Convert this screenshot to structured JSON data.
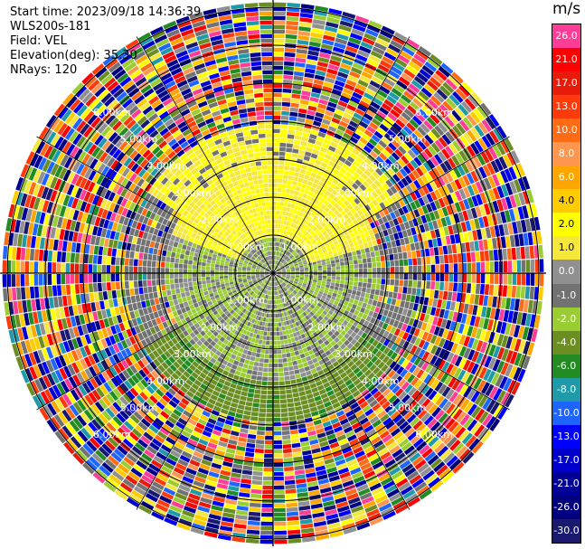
{
  "meta": {
    "start_time": "Start time: 2023/09/18 14:36:39",
    "instrument": "WLS200s-181",
    "field": "Field: VEL",
    "elevation": "Elevation(deg): 35.30",
    "nrays": "NRays: 120"
  },
  "range_rings": [
    "1.00km",
    "2.00km",
    "3.00km",
    "4.00km",
    "5.00km",
    "6.00km"
  ],
  "colorbar": {
    "unit": "m/s",
    "levels": [
      {
        "label": "26.0",
        "color": "#ff3c96"
      },
      {
        "label": "21.0",
        "color": "#ff0000"
      },
      {
        "label": "17.0",
        "color": "#e81a0a"
      },
      {
        "label": "13.0",
        "color": "#ff3a0a"
      },
      {
        "label": "10.0",
        "color": "#ff6a14"
      },
      {
        "label": "8.0",
        "color": "#ff9650"
      },
      {
        "label": "6.0",
        "color": "#ffa500"
      },
      {
        "label": "4.0",
        "color": "#ffcc00"
      },
      {
        "label": "2.0",
        "color": "#ffff00"
      },
      {
        "label": "1.0",
        "color": "#f5e83a"
      },
      {
        "label": "0.0",
        "color": "#909090"
      },
      {
        "label": "-1.0",
        "color": "#727272"
      },
      {
        "label": "-2.0",
        "color": "#9acd32"
      },
      {
        "label": "-4.0",
        "color": "#6b8e23"
      },
      {
        "label": "-6.0",
        "color": "#228b22"
      },
      {
        "label": "-8.0",
        "color": "#1e9aa8"
      },
      {
        "label": "-10.0",
        "color": "#1e64ff"
      },
      {
        "label": "-13.0",
        "color": "#0000ff"
      },
      {
        "label": "-17.0",
        "color": "#0000cd"
      },
      {
        "label": "-21.0",
        "color": "#000096"
      },
      {
        "label": "-26.0",
        "color": "#000080"
      },
      {
        "label": "-30.0",
        "color": "#191970"
      }
    ]
  }
}
